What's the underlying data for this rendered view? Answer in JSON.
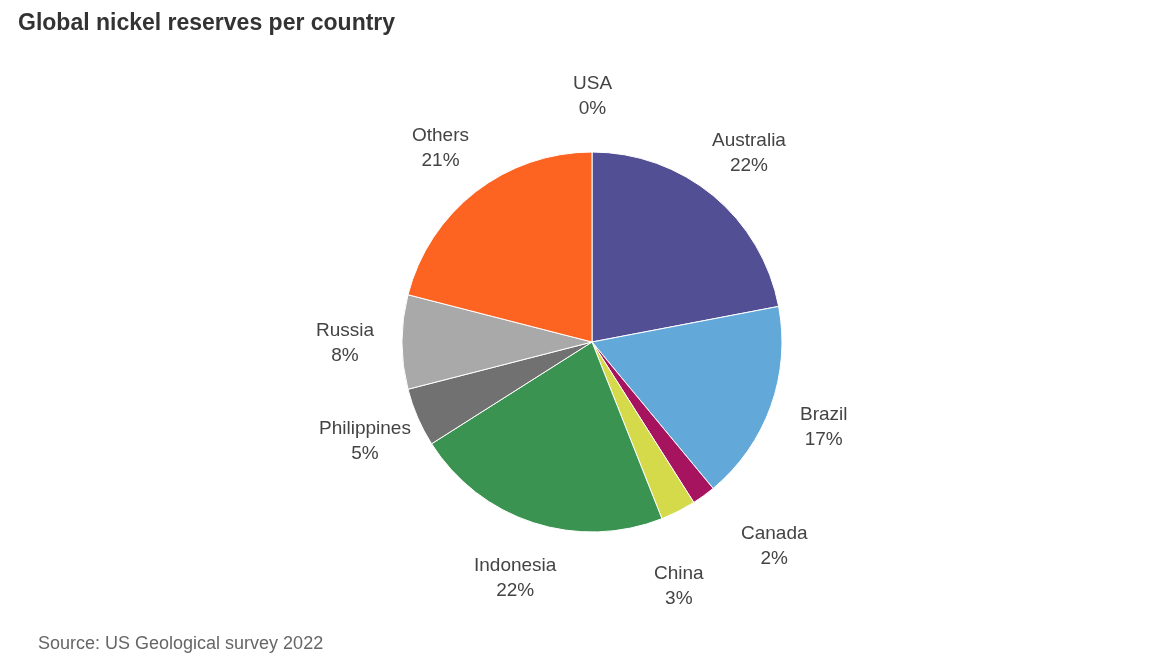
{
  "chart_data": {
    "type": "pie",
    "title": "Global nickel reserves per country",
    "categories": [
      "USA",
      "Australia",
      "Brazil",
      "Canada",
      "China",
      "Indonesia",
      "Philippines",
      "Russia",
      "Others"
    ],
    "values": [
      0,
      22,
      17,
      2,
      3,
      22,
      5,
      8,
      21
    ],
    "colors": [
      "#8c8c8c",
      "#524f95",
      "#62a8d9",
      "#a6135f",
      "#d4da4a",
      "#3a9350",
      "#717171",
      "#a9a9a9",
      "#fd6422"
    ],
    "value_labels": [
      "0%",
      "22%",
      "17%",
      "2%",
      "3%",
      "22%",
      "5%",
      "8%",
      "21%"
    ],
    "annotations": [
      "Source: US Geological survey 2022"
    ]
  }
}
